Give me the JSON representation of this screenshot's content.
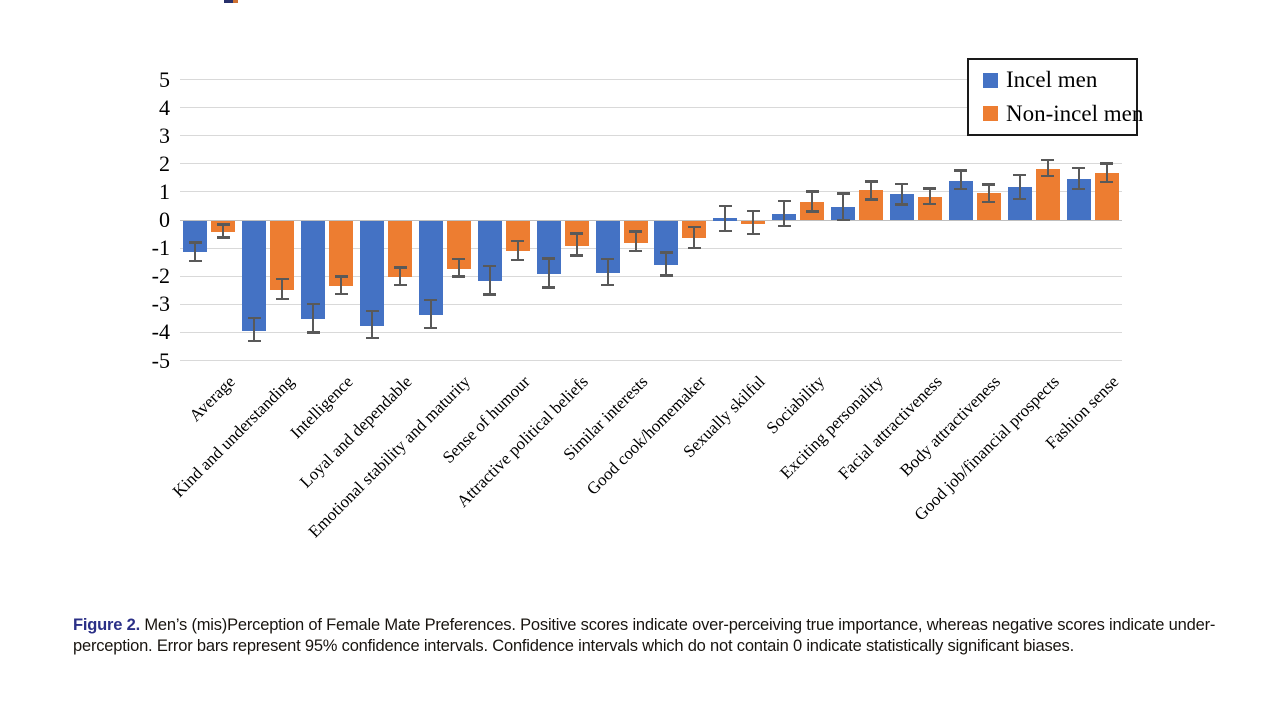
{
  "caption": {
    "label": "Figure 2.",
    "label_color": "#2b3087",
    "line1_rest": " Men’s (mis)Perception of Female Mate Preferences. Positive scores indicate over-perceiving true importance, whereas negative scores indicate under-",
    "line2": "perception. Error bars represent 95% confidence intervals. Confidence intervals which do not contain 0 indicate statistically significant biases."
  },
  "chart_data": {
    "type": "bar",
    "title": "",
    "xlabel": "",
    "ylabel": "",
    "ylim": [
      -5,
      5
    ],
    "yticks": [
      5,
      4,
      3,
      2,
      1,
      0,
      -1,
      -2,
      -3,
      -4,
      -5
    ],
    "grid": true,
    "legend_position": "top-right",
    "error_bars": "95% confidence intervals",
    "colors": {
      "gridline": "#d9d9d9",
      "zero_line": "#bfbfbf",
      "error_bar": "#595959",
      "legend_border": "#1a1a1a"
    },
    "categories": [
      "Average",
      "Kind and understanding",
      "Intelligence",
      "Loyal and dependable",
      "Emotional stability and maturity",
      "Sense of humour",
      "Attractive political beliefs",
      "Similar interests",
      "Good cook/homemaker",
      "Sexually skilful",
      "Sociability",
      "Exciting personality",
      "Facial attractiveness",
      "Body attractiveness",
      "Good job/financial prospects",
      "Fashion sense"
    ],
    "series": [
      {
        "name": "Incel men",
        "color": "#4472c4",
        "values": [
          -1.12,
          -3.9,
          -3.5,
          -3.72,
          -3.35,
          -2.15,
          -1.9,
          -1.85,
          -1.58,
          0.07,
          0.22,
          0.46,
          0.94,
          1.4,
          1.16,
          1.45
        ],
        "ci_low": [
          -1.5,
          -4.35,
          -4.05,
          -4.25,
          -3.88,
          -2.7,
          -2.45,
          -2.35,
          -2.02,
          -0.44,
          -0.26,
          -0.05,
          0.5,
          1.05,
          0.7,
          1.05
        ],
        "ci_high": [
          -0.75,
          -3.45,
          -2.95,
          -3.2,
          -2.8,
          -1.6,
          -1.32,
          -1.35,
          -1.12,
          0.55,
          0.72,
          0.98,
          1.32,
          1.8,
          1.65,
          1.9
        ]
      },
      {
        "name": "Non-incel men",
        "color": "#ed7d31",
        "values": [
          -0.4,
          -2.45,
          -2.32,
          -2.0,
          -1.7,
          -1.07,
          -0.88,
          -0.8,
          -0.6,
          -0.1,
          0.64,
          1.05,
          0.82,
          0.95,
          1.82,
          1.66
        ],
        "ci_low": [
          -0.66,
          -2.85,
          -2.68,
          -2.36,
          -2.06,
          -1.46,
          -1.3,
          -1.14,
          -1.05,
          -0.55,
          0.26,
          0.68,
          0.52,
          0.6,
          1.52,
          1.3
        ],
        "ci_high": [
          -0.12,
          -2.05,
          -1.96,
          -1.64,
          -1.35,
          -0.7,
          -0.44,
          -0.36,
          -0.2,
          0.36,
          1.06,
          1.42,
          1.16,
          1.3,
          2.18,
          2.06
        ]
      }
    ]
  }
}
